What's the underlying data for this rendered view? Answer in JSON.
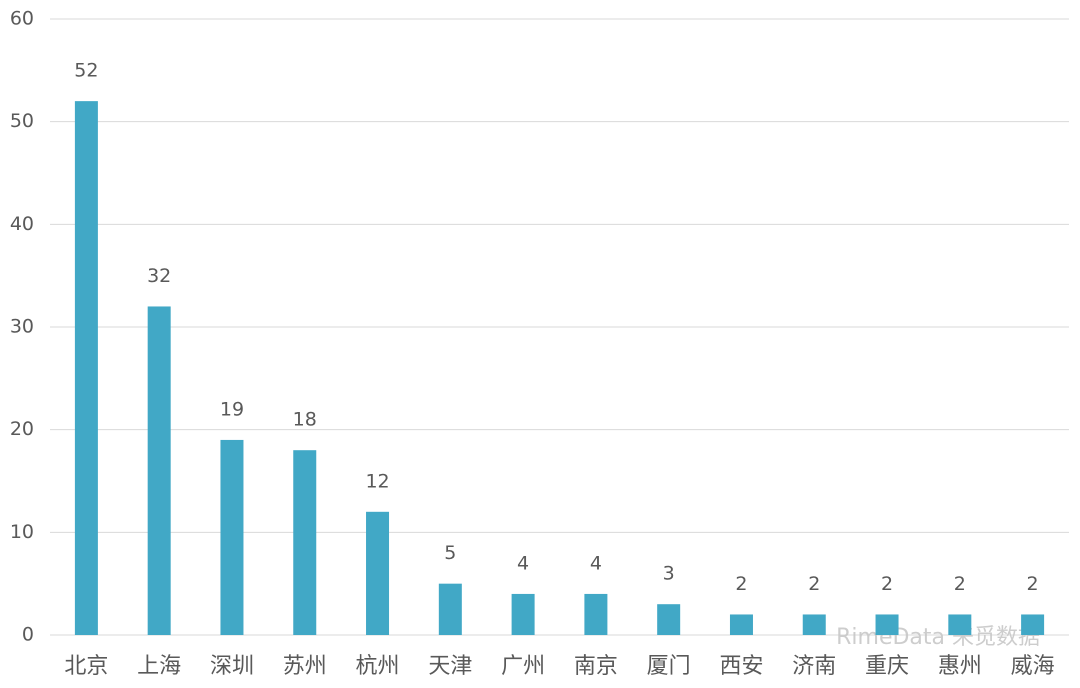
{
  "chart_data": {
    "type": "bar",
    "categories": [
      "北京",
      "上海",
      "深圳",
      "苏州",
      "杭州",
      "天津",
      "广州",
      "南京",
      "厦门",
      "西安",
      "济南",
      "重庆",
      "惠州",
      "威海"
    ],
    "values": [
      52,
      32,
      19,
      18,
      12,
      5,
      4,
      4,
      3,
      2,
      2,
      2,
      2,
      2
    ],
    "color": "#41a8c6",
    "ylim": [
      0,
      60
    ],
    "yticks": [
      0,
      10,
      20,
      30,
      40,
      50,
      60
    ],
    "grid": true,
    "watermark": "RimeData 来觅数据"
  }
}
